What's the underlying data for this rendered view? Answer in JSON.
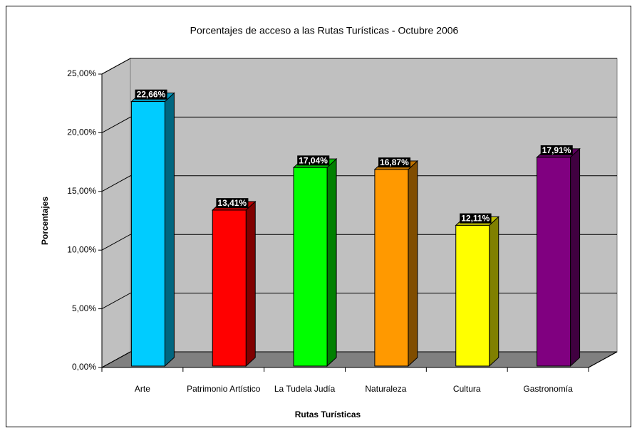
{
  "chart_data": {
    "type": "bar",
    "title": "Porcentajes de acceso a las Rutas Turísticas - Octubre 2006",
    "x_label": "Rutas Turísticas",
    "y_label": "Porcentajes",
    "categories": [
      "Arte",
      "Patrimonio Artístico",
      "La Tudela Judía",
      "Naturaleza",
      "Cultura",
      "Gastronomía"
    ],
    "values": [
      22.66,
      13.41,
      17.04,
      16.87,
      12.11,
      17.91
    ],
    "value_labels": [
      "22,66%",
      "13,41%",
      "17,04%",
      "16,87%",
      "12,11%",
      "17,91%"
    ],
    "colors": [
      "#00ccff",
      "#ff0000",
      "#00ff00",
      "#ff9900",
      "#ffff00",
      "#800080"
    ],
    "ylim": [
      0,
      25
    ],
    "yticks": [
      {
        "value": 0,
        "label": "0,00%"
      },
      {
        "value": 5,
        "label": "5,00%"
      },
      {
        "value": 10,
        "label": "10,00%"
      },
      {
        "value": 15,
        "label": "15,00%"
      },
      {
        "value": 20,
        "label": "20,00%"
      },
      {
        "value": 25,
        "label": "25,00%"
      }
    ],
    "grid": true
  }
}
